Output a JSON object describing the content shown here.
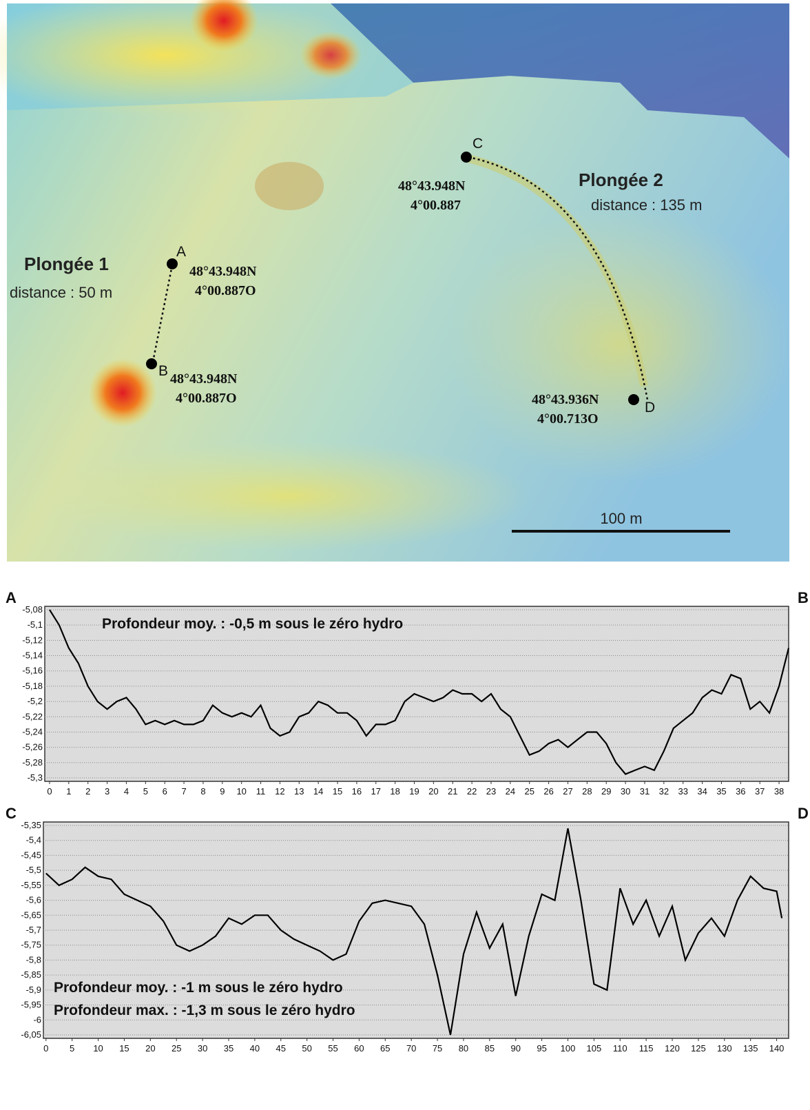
{
  "map": {
    "dives": [
      {
        "title": "Plongée 1",
        "distance": "distance : 50 m"
      },
      {
        "title": "Plongée 2",
        "distance": "distance : 135 m"
      }
    ],
    "points": [
      {
        "label": "A",
        "lat": "48°43.948N",
        "lon": "4°00.887O"
      },
      {
        "label": "B",
        "lat": "48°43.948N",
        "lon": "4°00.887O"
      },
      {
        "label": "C",
        "lat": "48°43.948N",
        "lon": "4°00.887"
      },
      {
        "label": "D",
        "lat": "48°43.936N",
        "lon": "4°00.713O"
      }
    ],
    "scale": "100 m"
  },
  "chart_data": [
    {
      "type": "line",
      "left_label": "A",
      "right_label": "B",
      "annotations": [
        "Profondeur moy. :  -0,5 m sous le zéro hydro"
      ],
      "color": "#000000",
      "grid": true,
      "xlim": [
        -0.25,
        38.5
      ],
      "ylim": [
        -5.3,
        -5.08
      ],
      "xticks": [
        0,
        1,
        2,
        3,
        4,
        5,
        6,
        7,
        8,
        9,
        10,
        11,
        12,
        13,
        14,
        15,
        16,
        17,
        18,
        19,
        20,
        21,
        22,
        23,
        24,
        25,
        26,
        27,
        28,
        29,
        30,
        31,
        32,
        33,
        34,
        35,
        36,
        37,
        38
      ],
      "yticks": [
        {
          "value": -5.08,
          "label": "-5,08"
        },
        {
          "value": -5.1,
          "label": "-5,1"
        },
        {
          "value": -5.12,
          "label": "-5,12"
        },
        {
          "value": -5.14,
          "label": "-5,14"
        },
        {
          "value": -5.16,
          "label": "-5,16"
        },
        {
          "value": -5.18,
          "label": "-5,18"
        },
        {
          "value": -5.2,
          "label": "-5,2"
        },
        {
          "value": -5.22,
          "label": "-5,22"
        },
        {
          "value": -5.24,
          "label": "-5,24"
        },
        {
          "value": -5.26,
          "label": "-5,26"
        },
        {
          "value": -5.28,
          "label": "-5,28"
        },
        {
          "value": -5.3,
          "label": "-5,3"
        }
      ],
      "x": [
        0,
        0.5,
        1,
        1.5,
        2,
        2.5,
        3,
        3.5,
        4,
        4.5,
        5,
        5.5,
        6,
        6.5,
        7,
        7.5,
        8,
        8.5,
        9,
        9.5,
        10,
        10.5,
        11,
        11.5,
        12,
        12.5,
        13,
        13.5,
        14,
        14.5,
        15,
        15.5,
        16,
        16.5,
        17,
        17.5,
        18,
        18.5,
        19,
        19.5,
        20,
        20.5,
        21,
        21.5,
        22,
        22.5,
        23,
        23.5,
        24,
        24.5,
        25,
        25.5,
        26,
        26.5,
        27,
        27.5,
        28,
        28.5,
        29,
        29.5,
        30,
        30.5,
        31,
        31.5,
        32,
        32.5,
        33,
        33.5,
        34,
        34.5,
        35,
        35.5,
        36,
        36.5,
        37,
        37.5,
        38,
        38.5
      ],
      "values": [
        -5.08,
        -5.1,
        -5.13,
        -5.15,
        -5.18,
        -5.2,
        -5.21,
        -5.2,
        -5.195,
        -5.21,
        -5.23,
        -5.225,
        -5.23,
        -5.225,
        -5.23,
        -5.23,
        -5.225,
        -5.205,
        -5.215,
        -5.22,
        -5.215,
        -5.22,
        -5.205,
        -5.235,
        -5.245,
        -5.24,
        -5.22,
        -5.215,
        -5.2,
        -5.205,
        -5.215,
        -5.215,
        -5.225,
        -5.245,
        -5.23,
        -5.23,
        -5.225,
        -5.2,
        -5.19,
        -5.195,
        -5.2,
        -5.195,
        -5.185,
        -5.19,
        -5.19,
        -5.2,
        -5.19,
        -5.21,
        -5.22,
        -5.245,
        -5.27,
        -5.265,
        -5.255,
        -5.25,
        -5.26,
        -5.25,
        -5.24,
        -5.24,
        -5.255,
        -5.28,
        -5.295,
        -5.29,
        -5.285,
        -5.29,
        -5.265,
        -5.235,
        -5.225,
        -5.215,
        -5.195,
        -5.185,
        -5.19,
        -5.165,
        -5.17,
        -5.21,
        -5.2,
        -5.215,
        -5.18,
        -5.13
      ]
    },
    {
      "type": "line",
      "left_label": "C",
      "right_label": "D",
      "annotations": [
        "Profondeur moy. :  -1 m sous le zéro hydro",
        "Profondeur max. :  -1,3 m sous le zéro hydro"
      ],
      "color": "#000000",
      "grid": true,
      "xlim": [
        -0.5,
        142.3
      ],
      "ylim": [
        -6.05,
        -5.35
      ],
      "xticks": [
        0,
        5,
        10,
        15,
        20,
        25,
        30,
        35,
        40,
        45,
        50,
        55,
        60,
        65,
        70,
        75,
        80,
        85,
        90,
        95,
        100,
        105,
        110,
        115,
        120,
        125,
        130,
        135,
        140
      ],
      "yticks": [
        {
          "value": -5.35,
          "label": "-5,35"
        },
        {
          "value": -5.4,
          "label": "-5,4"
        },
        {
          "value": -5.45,
          "label": "-5,45"
        },
        {
          "value": -5.5,
          "label": "-5,5"
        },
        {
          "value": -5.55,
          "label": "-5,55"
        },
        {
          "value": -5.6,
          "label": "-5,6"
        },
        {
          "value": -5.65,
          "label": "-5,65"
        },
        {
          "value": -5.7,
          "label": "-5,7"
        },
        {
          "value": -5.75,
          "label": "-5,75"
        },
        {
          "value": -5.8,
          "label": "-5,8"
        },
        {
          "value": -5.85,
          "label": "-5,85"
        },
        {
          "value": -5.9,
          "label": "-5,9"
        },
        {
          "value": -5.95,
          "label": "-5,95"
        },
        {
          "value": -6,
          "label": "-6"
        },
        {
          "value": -6.05,
          "label": "-6,05"
        }
      ],
      "x": [
        0,
        2.5,
        5,
        7.5,
        10,
        12.5,
        15,
        17.5,
        20,
        22.5,
        25,
        27.5,
        30,
        32.5,
        35,
        37.5,
        40,
        42.5,
        45,
        47.5,
        50,
        52.5,
        55,
        57.5,
        60,
        62.5,
        65,
        67.5,
        70,
        72.5,
        75,
        77.5,
        80,
        82.5,
        85,
        87.5,
        90,
        92.5,
        95,
        97.5,
        100,
        102.5,
        105,
        107.5,
        110,
        112.5,
        115,
        117.5,
        120,
        122.5,
        125,
        127.5,
        130,
        132.5,
        135,
        137.5,
        140,
        141
      ],
      "values": [
        -5.51,
        -5.55,
        -5.53,
        -5.49,
        -5.52,
        -5.53,
        -5.58,
        -5.6,
        -5.62,
        -5.67,
        -5.75,
        -5.77,
        -5.75,
        -5.72,
        -5.66,
        -5.68,
        -5.65,
        -5.65,
        -5.7,
        -5.73,
        -5.75,
        -5.77,
        -5.8,
        -5.78,
        -5.67,
        -5.61,
        -5.6,
        -5.61,
        -5.62,
        -5.68,
        -5.85,
        -6.05,
        -5.78,
        -5.64,
        -5.76,
        -5.68,
        -5.92,
        -5.72,
        -5.58,
        -5.6,
        -5.36,
        -5.6,
        -5.88,
        -5.9,
        -5.56,
        -5.68,
        -5.6,
        -5.72,
        -5.62,
        -5.8,
        -5.71,
        -5.66,
        -5.72,
        -5.6,
        -5.52,
        -5.56,
        -5.57,
        -5.66
      ]
    }
  ]
}
